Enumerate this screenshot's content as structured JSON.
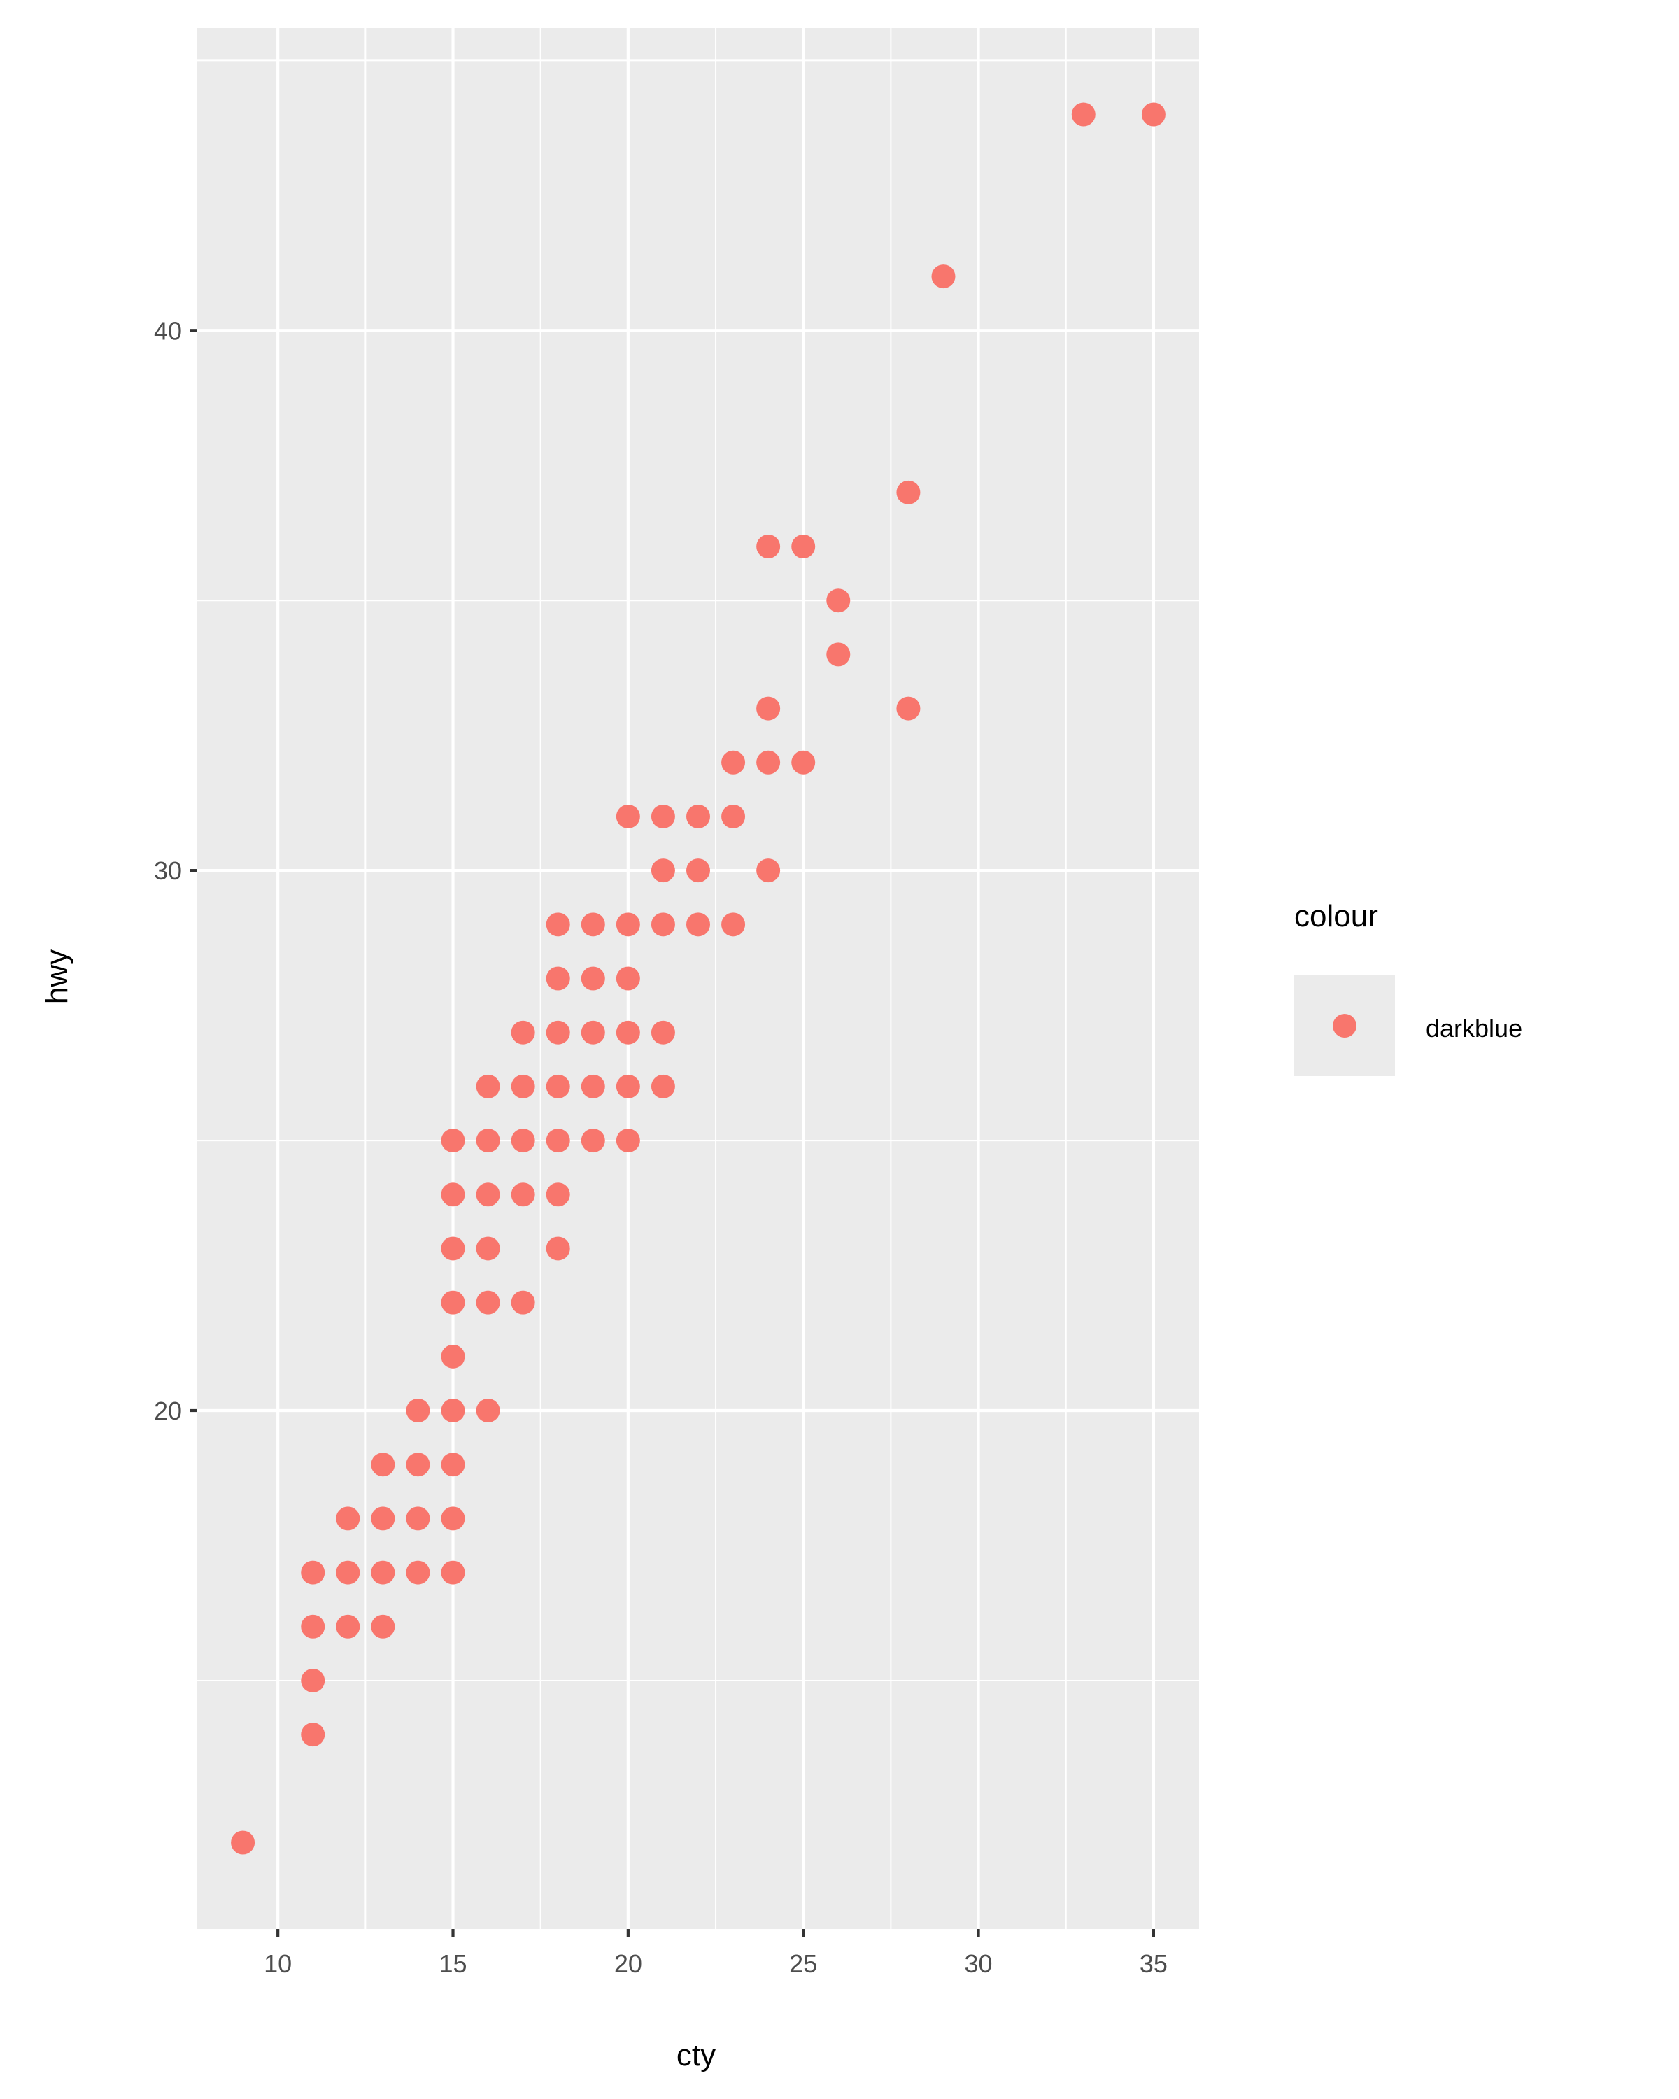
{
  "chart_data": {
    "type": "scatter",
    "title": "",
    "xlabel": "cty",
    "ylabel": "hwy",
    "xlim": [
      7.7,
      36.3
    ],
    "ylim": [
      10.4,
      45.6
    ],
    "x_ticks": [
      10,
      15,
      20,
      25,
      30,
      35
    ],
    "y_ticks": [
      20,
      30,
      40
    ],
    "x_tick_labels": [
      "10",
      "15",
      "20",
      "25",
      "30",
      "35"
    ],
    "y_tick_labels": [
      "20",
      "30",
      "40"
    ],
    "grid": true,
    "panel_background": "#ebebeb",
    "grid_color": "#ffffff",
    "point_color": "#f8766d",
    "legend": {
      "title": "colour",
      "position": "right",
      "items": [
        {
          "label": "darkblue",
          "color": "#f8766d"
        }
      ]
    },
    "points": [
      [
        9,
        12
      ],
      [
        11,
        14
      ],
      [
        11,
        15
      ],
      [
        11,
        16
      ],
      [
        11,
        17
      ],
      [
        12,
        16
      ],
      [
        12,
        17
      ],
      [
        12,
        18
      ],
      [
        13,
        16
      ],
      [
        13,
        17
      ],
      [
        13,
        18
      ],
      [
        13,
        19
      ],
      [
        14,
        17
      ],
      [
        14,
        18
      ],
      [
        14,
        19
      ],
      [
        14,
        20
      ],
      [
        15,
        17
      ],
      [
        15,
        18
      ],
      [
        15,
        19
      ],
      [
        15,
        20
      ],
      [
        15,
        21
      ],
      [
        15,
        22
      ],
      [
        15,
        23
      ],
      [
        15,
        24
      ],
      [
        15,
        25
      ],
      [
        16,
        20
      ],
      [
        16,
        22
      ],
      [
        16,
        23
      ],
      [
        16,
        24
      ],
      [
        16,
        25
      ],
      [
        16,
        26
      ],
      [
        17,
        22
      ],
      [
        17,
        24
      ],
      [
        17,
        25
      ],
      [
        17,
        26
      ],
      [
        17,
        27
      ],
      [
        18,
        23
      ],
      [
        18,
        24
      ],
      [
        18,
        25
      ],
      [
        18,
        26
      ],
      [
        18,
        27
      ],
      [
        18,
        28
      ],
      [
        18,
        29
      ],
      [
        19,
        25
      ],
      [
        19,
        26
      ],
      [
        19,
        27
      ],
      [
        19,
        28
      ],
      [
        19,
        29
      ],
      [
        20,
        25
      ],
      [
        20,
        26
      ],
      [
        20,
        27
      ],
      [
        20,
        28
      ],
      [
        20,
        29
      ],
      [
        20,
        31
      ],
      [
        21,
        26
      ],
      [
        21,
        27
      ],
      [
        21,
        29
      ],
      [
        21,
        30
      ],
      [
        21,
        31
      ],
      [
        22,
        29
      ],
      [
        22,
        30
      ],
      [
        22,
        31
      ],
      [
        23,
        29
      ],
      [
        23,
        31
      ],
      [
        23,
        32
      ],
      [
        24,
        30
      ],
      [
        24,
        32
      ],
      [
        24,
        33
      ],
      [
        24,
        36
      ],
      [
        25,
        32
      ],
      [
        25,
        36
      ],
      [
        26,
        34
      ],
      [
        26,
        35
      ],
      [
        28,
        33
      ],
      [
        28,
        37
      ],
      [
        29,
        41
      ],
      [
        33,
        44
      ],
      [
        35,
        44
      ]
    ]
  }
}
